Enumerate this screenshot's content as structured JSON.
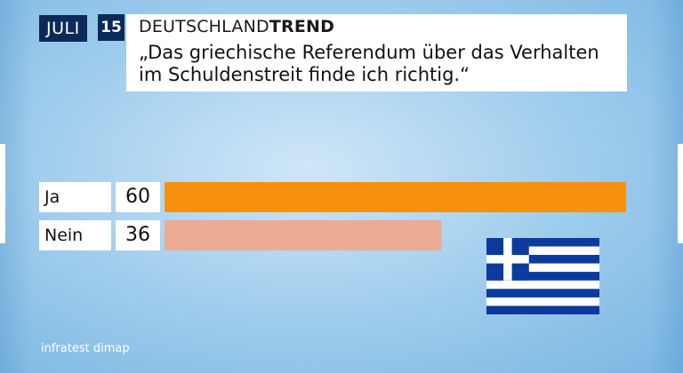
{
  "header": {
    "month": "JULI",
    "year": "15",
    "brand_regular": "DEUTSCHLAND",
    "brand_bold": "TREND",
    "question_line1": "„Das griechische Referendum über das Verhalten",
    "question_line2": "im Schuldenstreit finde ich richtig.“"
  },
  "chart_data": {
    "type": "bar",
    "orientation": "horizontal",
    "categories": [
      "Ja",
      "Nein"
    ],
    "values": [
      60,
      36
    ],
    "value_labels": [
      "60",
      "36"
    ],
    "colors": [
      "#f7900d",
      "#ebab93"
    ],
    "xlim": [
      0,
      60
    ],
    "unit": "%",
    "grid": false,
    "legend": "none"
  },
  "decorations": {
    "flag": "greece-flag-icon",
    "flag_colors": [
      "#0d3a9e",
      "#ffffff"
    ]
  },
  "footer": {
    "source": "infratest dimap"
  },
  "colors": {
    "badge": "#0b2a5a"
  }
}
